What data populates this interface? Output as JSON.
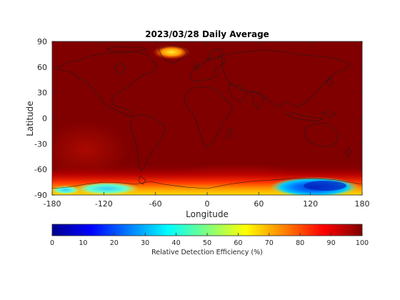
{
  "map": {
    "title": "2023/03/28 Daily Average",
    "xlabel": "Longitude",
    "ylabel": "Latitude",
    "xlim": [
      -180,
      180
    ],
    "ylim": [
      -90,
      90
    ],
    "xticks": [
      -180,
      -120,
      -60,
      0,
      60,
      120,
      180
    ],
    "yticks": [
      90,
      60,
      30,
      0,
      -30,
      -60,
      -90
    ],
    "background_value": 98,
    "features": [
      "coastlines",
      "polar-south-low-efficiency-band",
      "antarctic-blue-anomaly-east",
      "antarctic-cyan-anomaly-west",
      "arctic-yellow-anomaly-greenland"
    ]
  },
  "colorbar": {
    "label": "Relative Detection Efficiency (%)",
    "ticks": [
      0,
      10,
      20,
      30,
      40,
      50,
      60,
      70,
      80,
      90,
      100
    ],
    "colormap": "jet",
    "range": [
      0,
      100
    ]
  },
  "colors": {
    "jet_low": "#00008f",
    "jet_blue": "#0000ff",
    "jet_cyan": "#00ffff",
    "jet_yellow": "#ffff00",
    "jet_red": "#ff0000",
    "jet_high": "#800000",
    "coastline": "#1a1a1a"
  }
}
